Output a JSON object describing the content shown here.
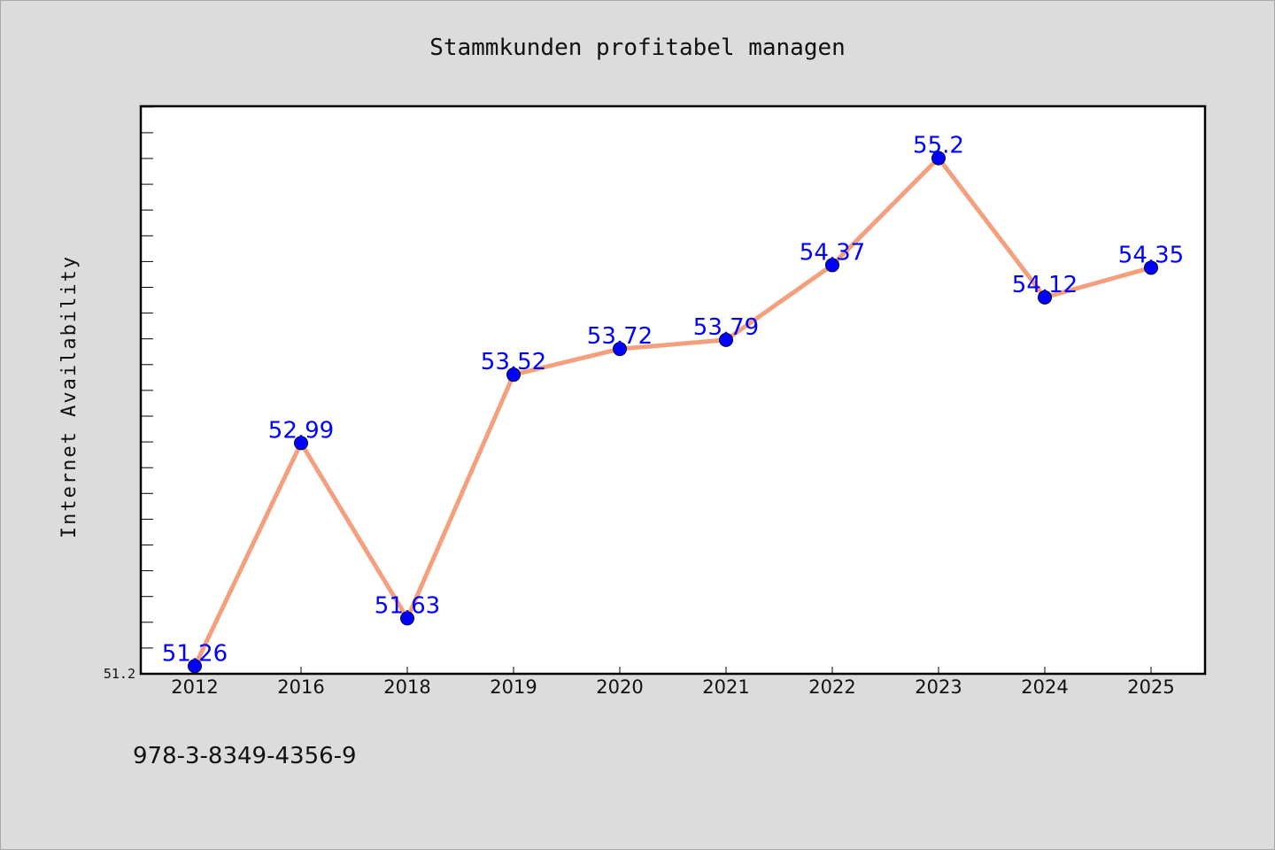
{
  "chart_data": {
    "type": "line",
    "title": "Stammkunden profitabel managen",
    "xlabel": "",
    "ylabel": "Internet Availability",
    "categories": [
      "2012",
      "2016",
      "2018",
      "2019",
      "2020",
      "2021",
      "2022",
      "2023",
      "2024",
      "2025"
    ],
    "series": [
      {
        "values": [
          51.26,
          52.99,
          51.63,
          53.52,
          53.72,
          53.79,
          54.37,
          55.2,
          54.12,
          54.35
        ],
        "labels": [
          "51.26",
          "52.99",
          "51.63",
          "53.52",
          "53.72",
          "53.79",
          "54.37",
          "55.2",
          "54.12",
          "54.35"
        ],
        "line_color": "#f4a07e",
        "marker_color": "#0000ff"
      }
    ],
    "ylim": [
      51.2,
      55.6
    ],
    "yticks_labeled": [
      "51.2"
    ],
    "grid": false,
    "legend": "none"
  },
  "footer": {
    "isbn": "978-3-8349-4356-9"
  },
  "colors": {
    "background": "#dcdcdc",
    "plot_background": "#ffffff",
    "axis": "#000000",
    "data_label": "#0000ff"
  }
}
